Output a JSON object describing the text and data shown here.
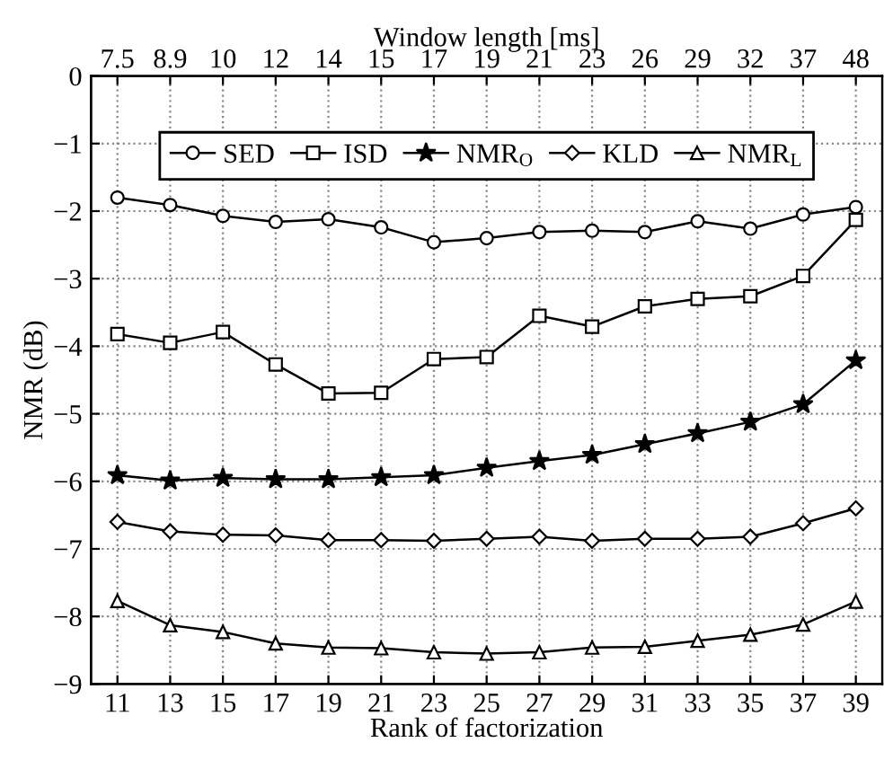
{
  "chart_data": {
    "type": "line",
    "xlabel": "Rank of factorization",
    "ylabel": "NMR (dB)",
    "x2label": "Window length [ms]",
    "x": [
      11,
      13,
      15,
      17,
      19,
      21,
      23,
      25,
      27,
      29,
      31,
      33,
      35,
      37,
      39
    ],
    "xlim": [
      10,
      40
    ],
    "xticks": [
      11,
      13,
      15,
      17,
      19,
      21,
      23,
      25,
      27,
      29,
      31,
      33,
      35,
      37,
      39
    ],
    "annotations": [
      "7.5",
      "8.9",
      "10",
      "12",
      "14",
      "15",
      "17",
      "19",
      "21",
      "23",
      "26",
      "29",
      "32",
      "37",
      "48"
    ],
    "ylim": [
      -9,
      0
    ],
    "yticks": [
      {
        "value": -9,
        "label": "−9"
      },
      {
        "value": -8,
        "label": "−8"
      },
      {
        "value": -7,
        "label": "−7"
      },
      {
        "value": -6,
        "label": "−6"
      },
      {
        "value": -5,
        "label": "−5"
      },
      {
        "value": -4,
        "label": "−4"
      },
      {
        "value": -3,
        "label": "−3"
      },
      {
        "value": -2,
        "label": "−2"
      },
      {
        "value": -1,
        "label": "−1"
      },
      0
    ],
    "grid": true,
    "legend": "top",
    "line_style": "solid",
    "series": [
      {
        "name": "SED",
        "color": "#000000",
        "marker": "circle",
        "values": [
          -1.8,
          -1.91,
          -2.07,
          -2.16,
          -2.12,
          -2.24,
          -2.46,
          -2.4,
          -2.31,
          -2.29,
          -2.31,
          -2.15,
          -2.26,
          -2.05,
          -1.94
        ]
      },
      {
        "name": "ISD",
        "color": "#000000",
        "marker": "square",
        "values": [
          -3.82,
          -3.95,
          -3.79,
          -4.27,
          -4.7,
          -4.69,
          -4.19,
          -4.16,
          -3.55,
          -3.71,
          -3.41,
          -3.3,
          -3.26,
          -2.96,
          -2.13
        ]
      },
      {
        "name": "NMR$_{O}$",
        "color": "#000000",
        "marker": "star",
        "values": [
          -5.91,
          -5.99,
          -5.95,
          -5.97,
          -5.97,
          -5.94,
          -5.91,
          -5.8,
          -5.7,
          -5.61,
          -5.45,
          -5.29,
          -5.12,
          -4.86,
          -4.21
        ]
      },
      {
        "name": "KLD",
        "color": "#000000",
        "marker": "diamond",
        "values": [
          -6.6,
          -6.74,
          -6.79,
          -6.8,
          -6.87,
          -6.87,
          -6.88,
          -6.85,
          -6.82,
          -6.88,
          -6.85,
          -6.85,
          -6.82,
          -6.62,
          -6.4
        ]
      },
      {
        "name": "NMR$_{L}$",
        "color": "#000000",
        "marker": "triangle",
        "values": [
          -7.77,
          -8.13,
          -8.23,
          -8.4,
          -8.46,
          -8.47,
          -8.53,
          -8.55,
          -8.53,
          -8.46,
          -8.45,
          -8.36,
          -8.27,
          -8.12,
          -7.78
        ]
      }
    ]
  }
}
